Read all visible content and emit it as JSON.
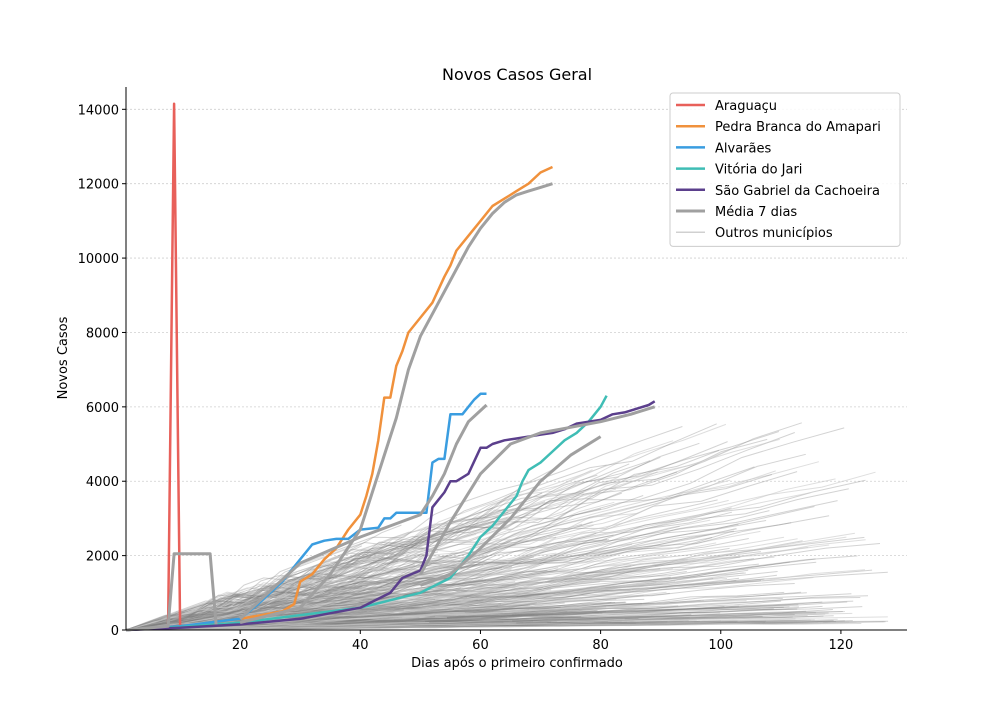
{
  "chart_data": {
    "type": "line",
    "title": "Novos Casos Geral",
    "xlabel": "Dias após o primeiro confirmado",
    "ylabel": "Novos Casos",
    "xlim": [
      1,
      131
    ],
    "ylim": [
      0,
      14600
    ],
    "xticks": [
      20,
      40,
      60,
      80,
      100,
      120
    ],
    "yticks": [
      0,
      2000,
      4000,
      6000,
      8000,
      10000,
      12000,
      14000
    ],
    "grid": "horizontal dotted",
    "legend_position": "top-right",
    "series": [
      {
        "name": "Araguaçu",
        "color": "#e8605a",
        "width": 2.5,
        "x": [
          8,
          9,
          10
        ],
        "y": [
          100,
          14150,
          100
        ]
      },
      {
        "name": "Pedra Branca do Amapari",
        "color": "#f0913c",
        "width": 2.5,
        "x": [
          1,
          10,
          20,
          27,
          29,
          30,
          32,
          34,
          36,
          38,
          40,
          41,
          42,
          43,
          44,
          45,
          46,
          47,
          48,
          50,
          52,
          54,
          55,
          56,
          58,
          60,
          62,
          64,
          66,
          68,
          70,
          72
        ],
        "y": [
          0,
          80,
          300,
          500,
          700,
          1300,
          1500,
          1900,
          2200,
          2700,
          3100,
          3600,
          4200,
          5100,
          6250,
          6250,
          7100,
          7500,
          8000,
          8400,
          8800,
          9500,
          9800,
          10200,
          10600,
          11000,
          11400,
          11600,
          11800,
          12000,
          12300,
          12450
        ]
      },
      {
        "name": "Alvarães",
        "color": "#3a9de0",
        "width": 2.5,
        "x": [
          1,
          10,
          20,
          23,
          25,
          27,
          28,
          30,
          32,
          34,
          36,
          38,
          40,
          43,
          44,
          45,
          46,
          48,
          50,
          51,
          52,
          53,
          54,
          55,
          56,
          57,
          58,
          59,
          60,
          61
        ],
        "y": [
          0,
          100,
          300,
          700,
          1000,
          1300,
          1500,
          1900,
          2300,
          2400,
          2450,
          2450,
          2700,
          2750,
          3000,
          3000,
          3150,
          3150,
          3150,
          3150,
          4500,
          4600,
          4600,
          5800,
          5800,
          5800,
          6000,
          6200,
          6350,
          6350
        ]
      },
      {
        "name": "Vitória do Jari",
        "color": "#3fbdb5",
        "width": 2.5,
        "x": [
          1,
          10,
          20,
          30,
          40,
          45,
          50,
          55,
          58,
          60,
          62,
          64,
          66,
          67,
          68,
          70,
          72,
          74,
          76,
          78,
          80,
          81
        ],
        "y": [
          0,
          80,
          200,
          400,
          600,
          800,
          1000,
          1400,
          2000,
          2500,
          2800,
          3200,
          3600,
          4000,
          4300,
          4500,
          4800,
          5100,
          5300,
          5600,
          6000,
          6300
        ]
      },
      {
        "name": "São Gabriel da Cachoeira",
        "color": "#5b3f8c",
        "width": 2.5,
        "x": [
          1,
          10,
          20,
          30,
          40,
          45,
          47,
          50,
          51,
          52,
          53,
          54,
          55,
          56,
          58,
          60,
          61,
          62,
          64,
          66,
          68,
          70,
          72,
          74,
          76,
          78,
          80,
          82,
          84,
          86,
          88,
          89
        ],
        "y": [
          0,
          60,
          150,
          300,
          600,
          1000,
          1400,
          1600,
          2000,
          3300,
          3500,
          3700,
          4000,
          4000,
          4200,
          4900,
          4900,
          5000,
          5100,
          5150,
          5200,
          5250,
          5300,
          5400,
          5550,
          5600,
          5650,
          5800,
          5850,
          5950,
          6050,
          6150
        ]
      },
      {
        "name": "Média 7 dias",
        "color": "#a0a0a0",
        "width": 3,
        "x": [
          1,
          8,
          9,
          15,
          16
        ],
        "y": [
          0,
          100,
          2050,
          2050,
          150
        ]
      },
      {
        "name": "",
        "color": "#a0a0a0",
        "width": 3,
        "x": [
          20,
          30,
          35,
          40,
          43,
          46,
          48,
          50,
          52,
          54,
          56,
          58,
          60,
          62,
          64,
          66,
          68,
          70,
          72
        ],
        "y": [
          200,
          600,
          1500,
          2700,
          4200,
          5700,
          7000,
          7900,
          8500,
          9100,
          9700,
          10300,
          10800,
          11200,
          11500,
          11700,
          11800,
          11900,
          12000
        ]
      },
      {
        "name": "",
        "color": "#a0a0a0",
        "width": 3,
        "x": [
          20,
          30,
          40,
          45,
          50,
          52,
          54,
          56,
          58,
          61
        ],
        "y": [
          300,
          1800,
          2500,
          2800,
          3100,
          3600,
          4200,
          5000,
          5600,
          6050
        ]
      },
      {
        "name": "",
        "color": "#a0a0a0",
        "width": 3,
        "x": [
          50,
          55,
          60,
          65,
          70,
          75,
          80
        ],
        "y": [
          1200,
          1500,
          2200,
          3000,
          4000,
          4700,
          5200
        ]
      },
      {
        "name": "",
        "color": "#a0a0a0",
        "width": 3,
        "x": [
          50,
          55,
          60,
          65,
          70,
          75,
          80,
          85,
          89
        ],
        "y": [
          1500,
          2900,
          4200,
          5000,
          5300,
          5450,
          5600,
          5800,
          6000
        ]
      }
    ],
    "legend": [
      {
        "label": "Araguaçu",
        "color": "#e8605a",
        "width": 2.5
      },
      {
        "label": "Pedra Branca do Amapari",
        "color": "#f0913c",
        "width": 2.5
      },
      {
        "label": "Alvarães",
        "color": "#3a9de0",
        "width": 2.5
      },
      {
        "label": "Vitória do Jari",
        "color": "#3fbdb5",
        "width": 2.5
      },
      {
        "label": "São Gabriel da Cachoeira",
        "color": "#5b3f8c",
        "width": 2.5
      },
      {
        "label": "Média 7 dias",
        "color": "#a0a0a0",
        "width": 3
      },
      {
        "label": "Outros municípios",
        "color": "#d0d0d0",
        "width": 1.5
      }
    ],
    "background_series": {
      "label": "Outros municípios",
      "color": "#808080",
      "light_color": "#c8c8c8",
      "count": 420,
      "x_end_range": [
        40,
        128
      ],
      "y_end_range": [
        200,
        5700
      ]
    }
  }
}
